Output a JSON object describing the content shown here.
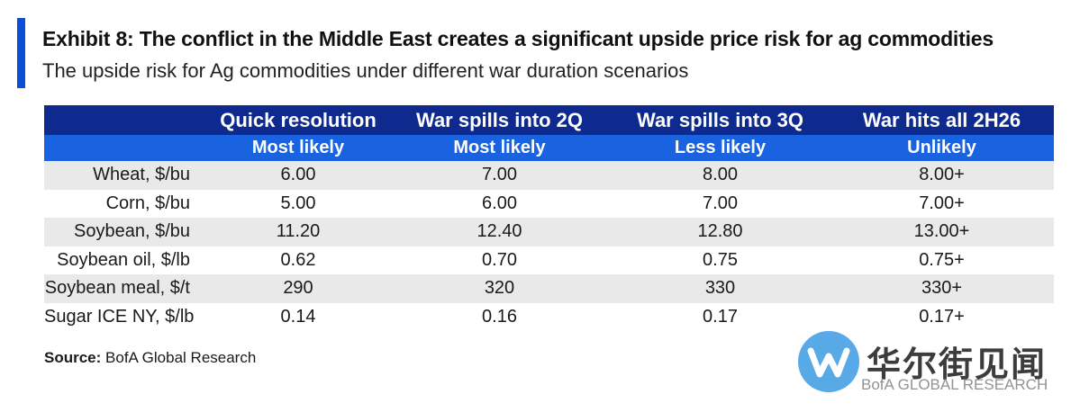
{
  "header": {
    "title": "Exhibit 8: The conflict in the Middle East creates a significant upside price risk for ag commodities",
    "subtitle": "The upside risk for Ag commodities under different war duration scenarios"
  },
  "chart_data": {
    "type": "table",
    "columns": [
      {
        "scenario": "Quick resolution",
        "likelihood": "Most likely"
      },
      {
        "scenario": "War spills into 2Q",
        "likelihood": "Most likely"
      },
      {
        "scenario": "War spills into 3Q",
        "likelihood": "Less likely"
      },
      {
        "scenario": "War hits all 2H26",
        "likelihood": "Unlikely"
      }
    ],
    "rows": [
      {
        "label": "Wheat, $/bu",
        "values": [
          "6.00",
          "7.00",
          "8.00",
          "8.00+"
        ]
      },
      {
        "label": "Corn, $/bu",
        "values": [
          "5.00",
          "6.00",
          "7.00",
          "7.00+"
        ]
      },
      {
        "label": "Soybean, $/bu",
        "values": [
          "11.20",
          "12.40",
          "12.80",
          "13.00+"
        ]
      },
      {
        "label": "Soybean oil, $/lb",
        "values": [
          "0.62",
          "0.70",
          "0.75",
          "0.75+"
        ]
      },
      {
        "label": "Soybean meal, $/t",
        "values": [
          "290",
          "320",
          "330",
          "330+"
        ]
      },
      {
        "label": "Sugar ICE NY, $/lb",
        "values": [
          "0.14",
          "0.16",
          "0.17",
          "0.17+"
        ]
      }
    ]
  },
  "footer": {
    "source_label": "Source:",
    "source_text": "BofA Global Research"
  },
  "watermark": {
    "cn": "华尔街见闻",
    "en": "BofA GLOBAL RESEARCH",
    "icon": "wallstreetcn-logo-icon"
  },
  "colors": {
    "accent": "#0b4fd6",
    "header_dark": "#0e2a8e",
    "header_light": "#1a63e0",
    "row_shade": "#e9e9e9"
  }
}
